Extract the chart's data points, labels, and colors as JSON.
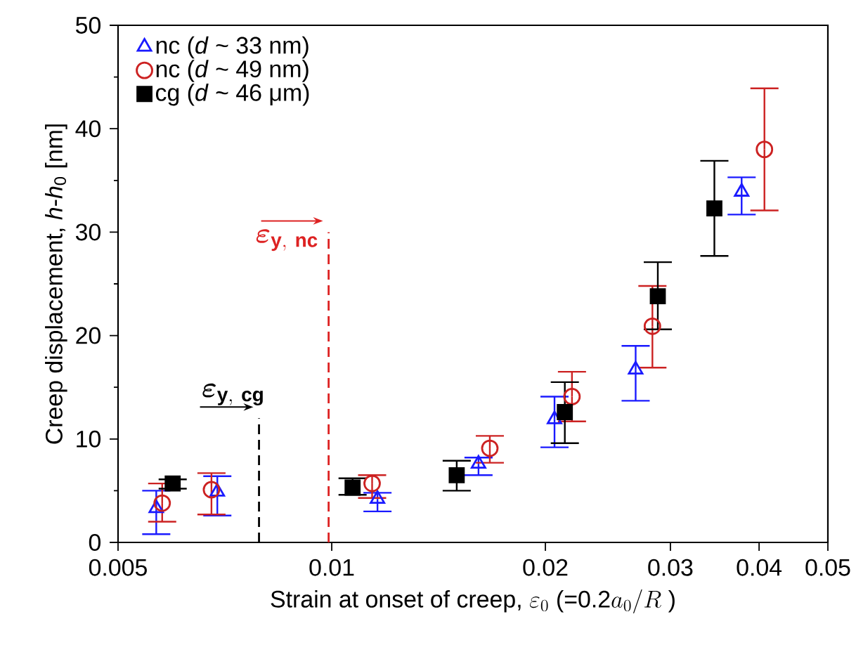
{
  "chart_data": {
    "type": "scatter",
    "xlabel": "\\text{Strain at onset of creep, }\\varepsilon_{0}\\text{ (=0.2}a_{0}/R\\text{ )}",
    "ylabel": "Creep displacement, *h*-*h*$_{0}$ [nm]",
    "log": "x",
    "xlim": [
      0.005,
      0.05
    ],
    "xticks": [
      0.005,
      0.01,
      0.02,
      0.03,
      0.04,
      0.05
    ],
    "ylim": [
      0,
      50
    ],
    "yticks": [
      0,
      10,
      20,
      30,
      40,
      50
    ],
    "grid": false,
    "legend": "top left",
    "series": [
      {
        "name": "nc (*d* ~ 33 nm)",
        "color": "#1a1aff",
        "marker": "triangle",
        "x": [
          0.00566,
          0.0069,
          0.0116,
          0.0161,
          0.0206,
          0.0268,
          0.0378
        ],
        "values": [
          3.3,
          4.9,
          4.2,
          7.6,
          11.9,
          16.7,
          33.9
        ],
        "errors": [
          [
            0.8,
            5.0
          ],
          [
            2.6,
            6.4
          ],
          [
            3.0,
            4.8
          ],
          [
            6.5,
            8.2
          ],
          [
            9.2,
            14.1
          ],
          [
            13.7,
            19.0
          ],
          [
            31.7,
            35.3
          ]
        ]
      },
      {
        "name": "nc (*d* ~ 49 nm)",
        "color": "#cc2222",
        "marker": "circle",
        "x": [
          0.00577,
          0.00677,
          0.0114,
          0.0167,
          0.0218,
          0.0283,
          0.0407
        ],
        "values": [
          3.8,
          5.1,
          5.7,
          9.1,
          14.1,
          20.9,
          38.0
        ],
        "errors": [
          [
            2.0,
            5.7
          ],
          [
            2.7,
            6.7
          ],
          [
            4.3,
            6.5
          ],
          [
            7.7,
            10.3
          ],
          [
            11.7,
            16.5
          ],
          [
            16.9,
            24.8
          ],
          [
            32.1,
            43.9
          ]
        ]
      },
      {
        "name": "cg (*d* ~ 46 μm)",
        "color": "#000000",
        "marker": "square",
        "x": [
          0.00597,
          0.0107,
          0.015,
          0.0213,
          0.0288,
          0.0346
        ],
        "values": [
          5.7,
          5.3,
          6.5,
          12.6,
          23.8,
          32.3
        ],
        "errors": [
          [
            5.2,
            6.1
          ],
          [
            4.6,
            6.2
          ],
          [
            5.0,
            7.9
          ],
          [
            9.6,
            15.5
          ],
          [
            20.6,
            27.1
          ],
          [
            27.7,
            36.9
          ]
        ]
      }
    ],
    "ref_lines": [
      {
        "axis": "x",
        "value": 0.0099,
        "label": "\\boldsymbol{\\varepsilon}_{\\mathbf{y,\\ nc}}",
        "color": "#dd2222",
        "line_style": "dashed"
      },
      {
        "axis": "x",
        "value": 0.0079,
        "label": "\\boldsymbol{\\varepsilon}_{\\mathbf{y,\\ cg}}",
        "color": "#000000",
        "line_style": "dashed"
      }
    ]
  }
}
